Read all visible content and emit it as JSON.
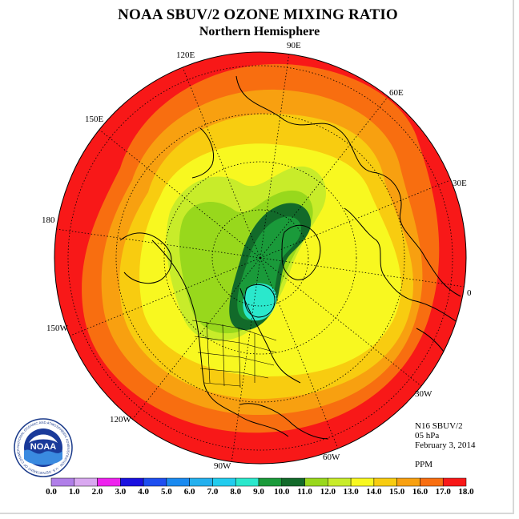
{
  "title": "NOAA SBUV/2 OZONE MIXING RATIO",
  "subtitle": "Northern Hemisphere",
  "longitude_labels": [
    "90E",
    "60E",
    "30E",
    "0",
    "30W",
    "60W",
    "90W",
    "120W",
    "150W",
    "180",
    "150E",
    "120E"
  ],
  "info": {
    "satellite": "N16 SBUV/2",
    "level": "05 hPa",
    "date": "February 3, 2014",
    "units": "PPM"
  },
  "logo": {
    "text": "NOAA",
    "ring_text": "NATIONAL OCEANIC AND ATMOSPHERIC ADMINISTRATION · U.S. DEPARTMENT OF COMMERCE"
  },
  "colorbar": {
    "ticks": [
      "0.0",
      "1.0",
      "2.0",
      "3.0",
      "4.0",
      "5.0",
      "6.0",
      "7.0",
      "8.0",
      "9.0",
      "10.0",
      "11.0",
      "12.0",
      "13.0",
      "14.0",
      "15.0",
      "16.0",
      "17.0",
      "18.0"
    ],
    "colors": [
      "#b07ee8",
      "#d9a8f0",
      "#ee22ee",
      "#1a10e0",
      "#1e4ef0",
      "#1a8af0",
      "#24b0ee",
      "#22ccee",
      "#2ae8cc",
      "#1a9a3a",
      "#126a2a",
      "#98d81c",
      "#c8ec2a",
      "#f8f820",
      "#f8cc10",
      "#f8a010",
      "#f86e10",
      "#f81818",
      "#9a5a48"
    ]
  },
  "map_data": {
    "projection": "north polar stereographic",
    "variable": "ozone mixing ratio",
    "field_zones": [
      {
        "color": "#f81818",
        "range": "16-17 ppm",
        "region": "outer ring, low latitudes"
      },
      {
        "color": "#f86e10",
        "range": "15-16 ppm"
      },
      {
        "color": "#f8a010",
        "range": "14-15 ppm"
      },
      {
        "color": "#f8cc10",
        "range": "13-14 ppm"
      },
      {
        "color": "#f8f820",
        "range": "12-13 ppm"
      },
      {
        "color": "#c8ec2a",
        "range": "11-12 ppm"
      },
      {
        "color": "#98d81c",
        "range": "10-11 ppm"
      },
      {
        "color": "#126a2a",
        "range": "9-10 ppm",
        "region": "polar vortex, Arctic to Hudson Bay"
      },
      {
        "color": "#2ae8cc",
        "range": "8-9 ppm",
        "region": "vortex core over Hudson Bay"
      }
    ]
  }
}
